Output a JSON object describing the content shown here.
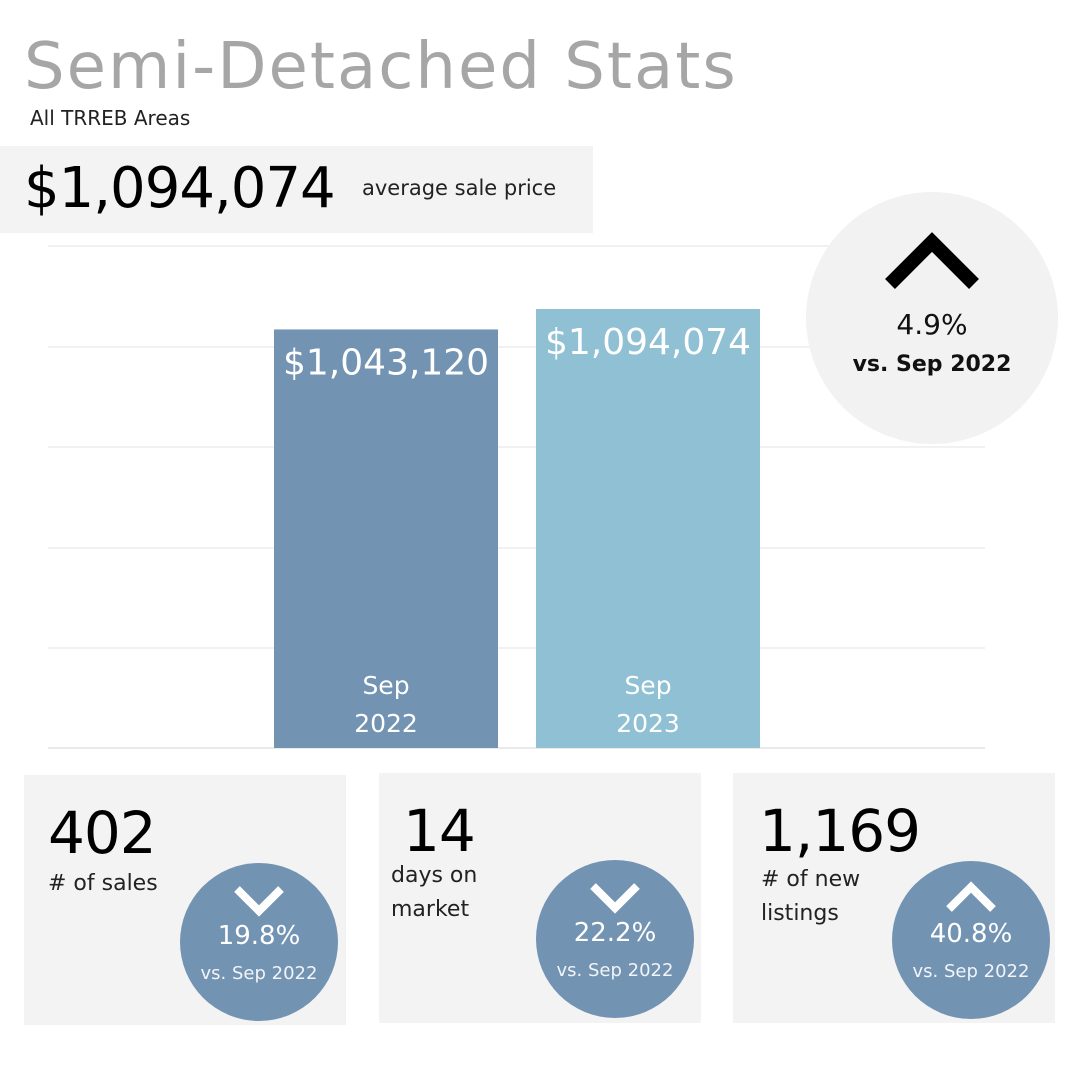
{
  "header": {
    "title": "Semi-Detached Stats",
    "subtitle": "All TRREB Areas"
  },
  "headline": {
    "value": "$1,094,074",
    "label": "average sale price"
  },
  "change": {
    "direction": "up",
    "icon": "chevron-up-icon",
    "pct": "4.9%",
    "vs": "vs. Sep 2022"
  },
  "chart_data": {
    "type": "bar",
    "categories": [
      [
        "Sep",
        "2022"
      ],
      [
        "Sep",
        "2023"
      ]
    ],
    "values": [
      1043120,
      1094074
    ],
    "value_labels": [
      "$1,043,120",
      "$1,094,074"
    ],
    "colors": [
      "#7393b3",
      "#8fc0d4"
    ],
    "ylim": [
      0,
      1094074
    ],
    "grid": true
  },
  "cards": [
    {
      "value": "402",
      "label": "# of sales",
      "direction": "down",
      "icon": "chevron-down-icon",
      "pct": "19.8%",
      "vs": "vs. Sep 2022"
    },
    {
      "value": "14",
      "label": "days on market",
      "direction": "down",
      "icon": "chevron-down-icon",
      "pct": "22.2%",
      "vs": "vs. Sep 2022"
    },
    {
      "value": "1,169",
      "label": "# of new listings",
      "direction": "up",
      "icon": "chevron-up-icon",
      "pct": "40.8%",
      "vs": "vs. Sep 2022"
    }
  ],
  "colors": {
    "title": "#a6a6a6",
    "panel": "#f3f3f3",
    "accent": "#7393b3",
    "accent_light": "#8fc0d4",
    "grid": "#e3e3e3"
  }
}
